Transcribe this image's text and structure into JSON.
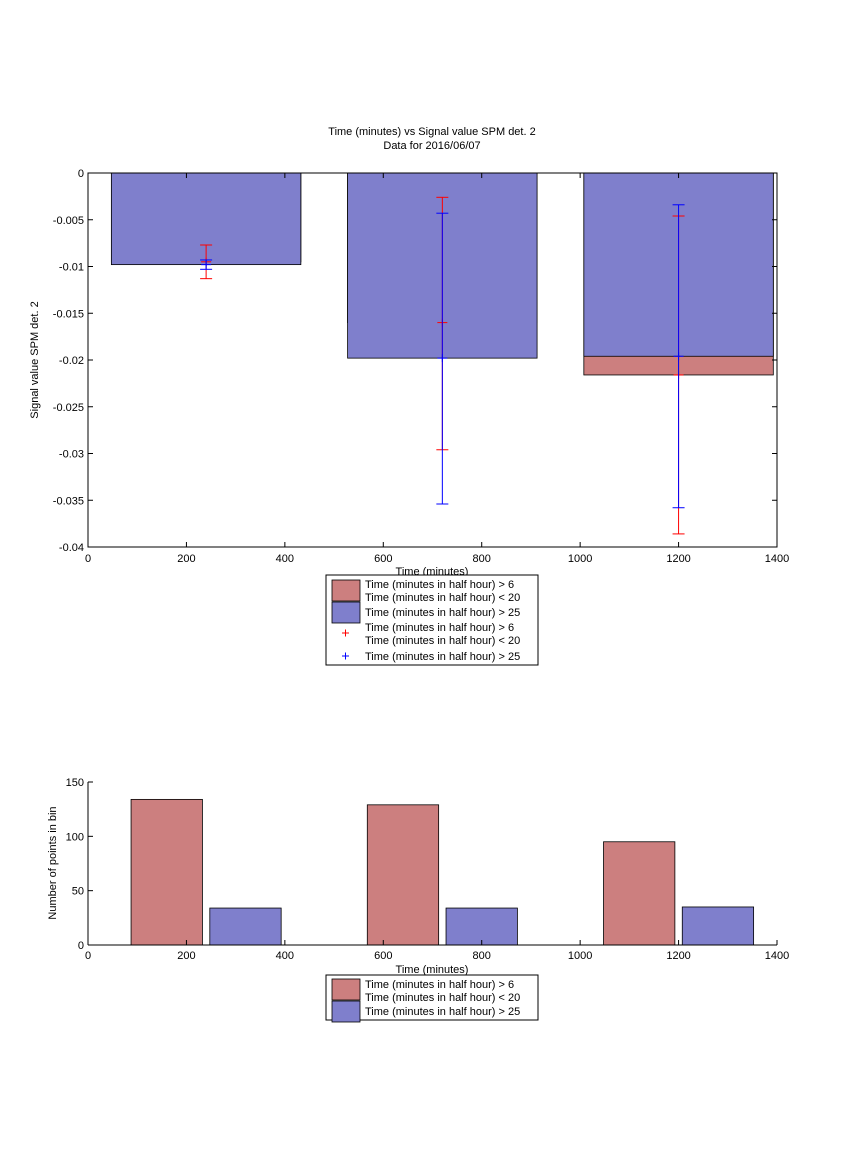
{
  "chart_data": [
    {
      "type": "bar",
      "title": "Time (minutes) vs Signal value SPM det. 2",
      "subtitle": "Data for 2016/06/07",
      "xlabel": "Time (minutes)",
      "ylabel": "Signal value SPM det. 2",
      "xlim": [
        0,
        1400
      ],
      "ylim": [
        -0.04,
        0
      ],
      "xticks": [
        "0",
        "200",
        "400",
        "600",
        "800",
        "1000",
        "1200",
        "1400"
      ],
      "yticks": [
        "0",
        "-0.005",
        "-0.01",
        "-0.015",
        "-0.02",
        "-0.025",
        "-0.03",
        "-0.035",
        "-0.04"
      ],
      "grid": false,
      "legend_position": "below",
      "colors": {
        "red": "#cc7f7f",
        "blue": "#7f7fcc",
        "red_marker": "#ff0000",
        "blue_marker": "#0000ff"
      },
      "bar_width": 385,
      "series": [
        {
          "name": "Time (minutes in half hour) > 6\nTime (minutes in half hour) < 20",
          "x": [
            240,
            720,
            1200
          ],
          "values": [
            -0.0095,
            -0.016,
            -0.0216
          ]
        },
        {
          "name": "Time (minutes in half hour) > 25",
          "x": [
            240,
            720,
            1200
          ],
          "values": [
            -0.0098,
            -0.0198,
            -0.0196
          ]
        }
      ],
      "errorbars": [
        {
          "name": "Time (minutes in half hour) > 6\nTime (minutes in half hour) < 20",
          "x": [
            240,
            720,
            1200
          ],
          "y": [
            -0.0095,
            -0.016,
            -0.0216
          ],
          "lower": [
            -0.0113,
            -0.0296,
            -0.0386
          ],
          "upper": [
            -0.0077,
            -0.0026,
            -0.0046
          ]
        },
        {
          "name": "Time (minutes in half hour) > 25",
          "x": [
            240,
            720,
            1200
          ],
          "y": [
            -0.0098,
            -0.0198,
            -0.0196
          ],
          "lower": [
            -0.0103,
            -0.0354,
            -0.0358
          ],
          "upper": [
            -0.0093,
            -0.0043,
            -0.0034
          ]
        }
      ],
      "legend": [
        {
          "label": "Time (minutes in half hour) > 6",
          "label2": "Time (minutes in half hour) < 20",
          "kind": "patch",
          "color": "#cc7f7f"
        },
        {
          "label": "Time (minutes in half hour) > 25",
          "kind": "patch",
          "color": "#7f7fcc"
        },
        {
          "label": "Time (minutes in half hour) > 6",
          "label2": "Time (minutes in half hour) < 20",
          "kind": "marker",
          "color": "#ff0000"
        },
        {
          "label": "Time (minutes in half hour) > 25",
          "kind": "marker",
          "color": "#0000ff"
        }
      ]
    },
    {
      "type": "bar",
      "title": "",
      "xlabel": "Time (minutes)",
      "ylabel": "Number of points in bin",
      "xlim": [
        0,
        1400
      ],
      "ylim": [
        0,
        150
      ],
      "xticks": [
        "0",
        "200",
        "400",
        "600",
        "800",
        "1000",
        "1200",
        "1400"
      ],
      "yticks": [
        "0",
        "50",
        "100",
        "150"
      ],
      "grid": false,
      "legend_position": "below",
      "bar_width": 145,
      "series": [
        {
          "name": "Time (minutes in half hour) > 6\nTime (minutes in half hour) < 20",
          "x": [
            160,
            640,
            1120
          ],
          "values": [
            134,
            129,
            95
          ],
          "color": "#cc7f7f"
        },
        {
          "name": "Time (minutes in half hour) > 25",
          "x": [
            320,
            800,
            1280
          ],
          "values": [
            34,
            34,
            35
          ],
          "color": "#7f7fcc"
        }
      ],
      "legend": [
        {
          "label": "Time (minutes in half hour) > 6",
          "label2": "Time (minutes in half hour) < 20",
          "kind": "patch",
          "color": "#cc7f7f"
        },
        {
          "label": "Time (minutes in half hour) > 25",
          "kind": "patch",
          "color": "#7f7fcc"
        }
      ]
    }
  ]
}
